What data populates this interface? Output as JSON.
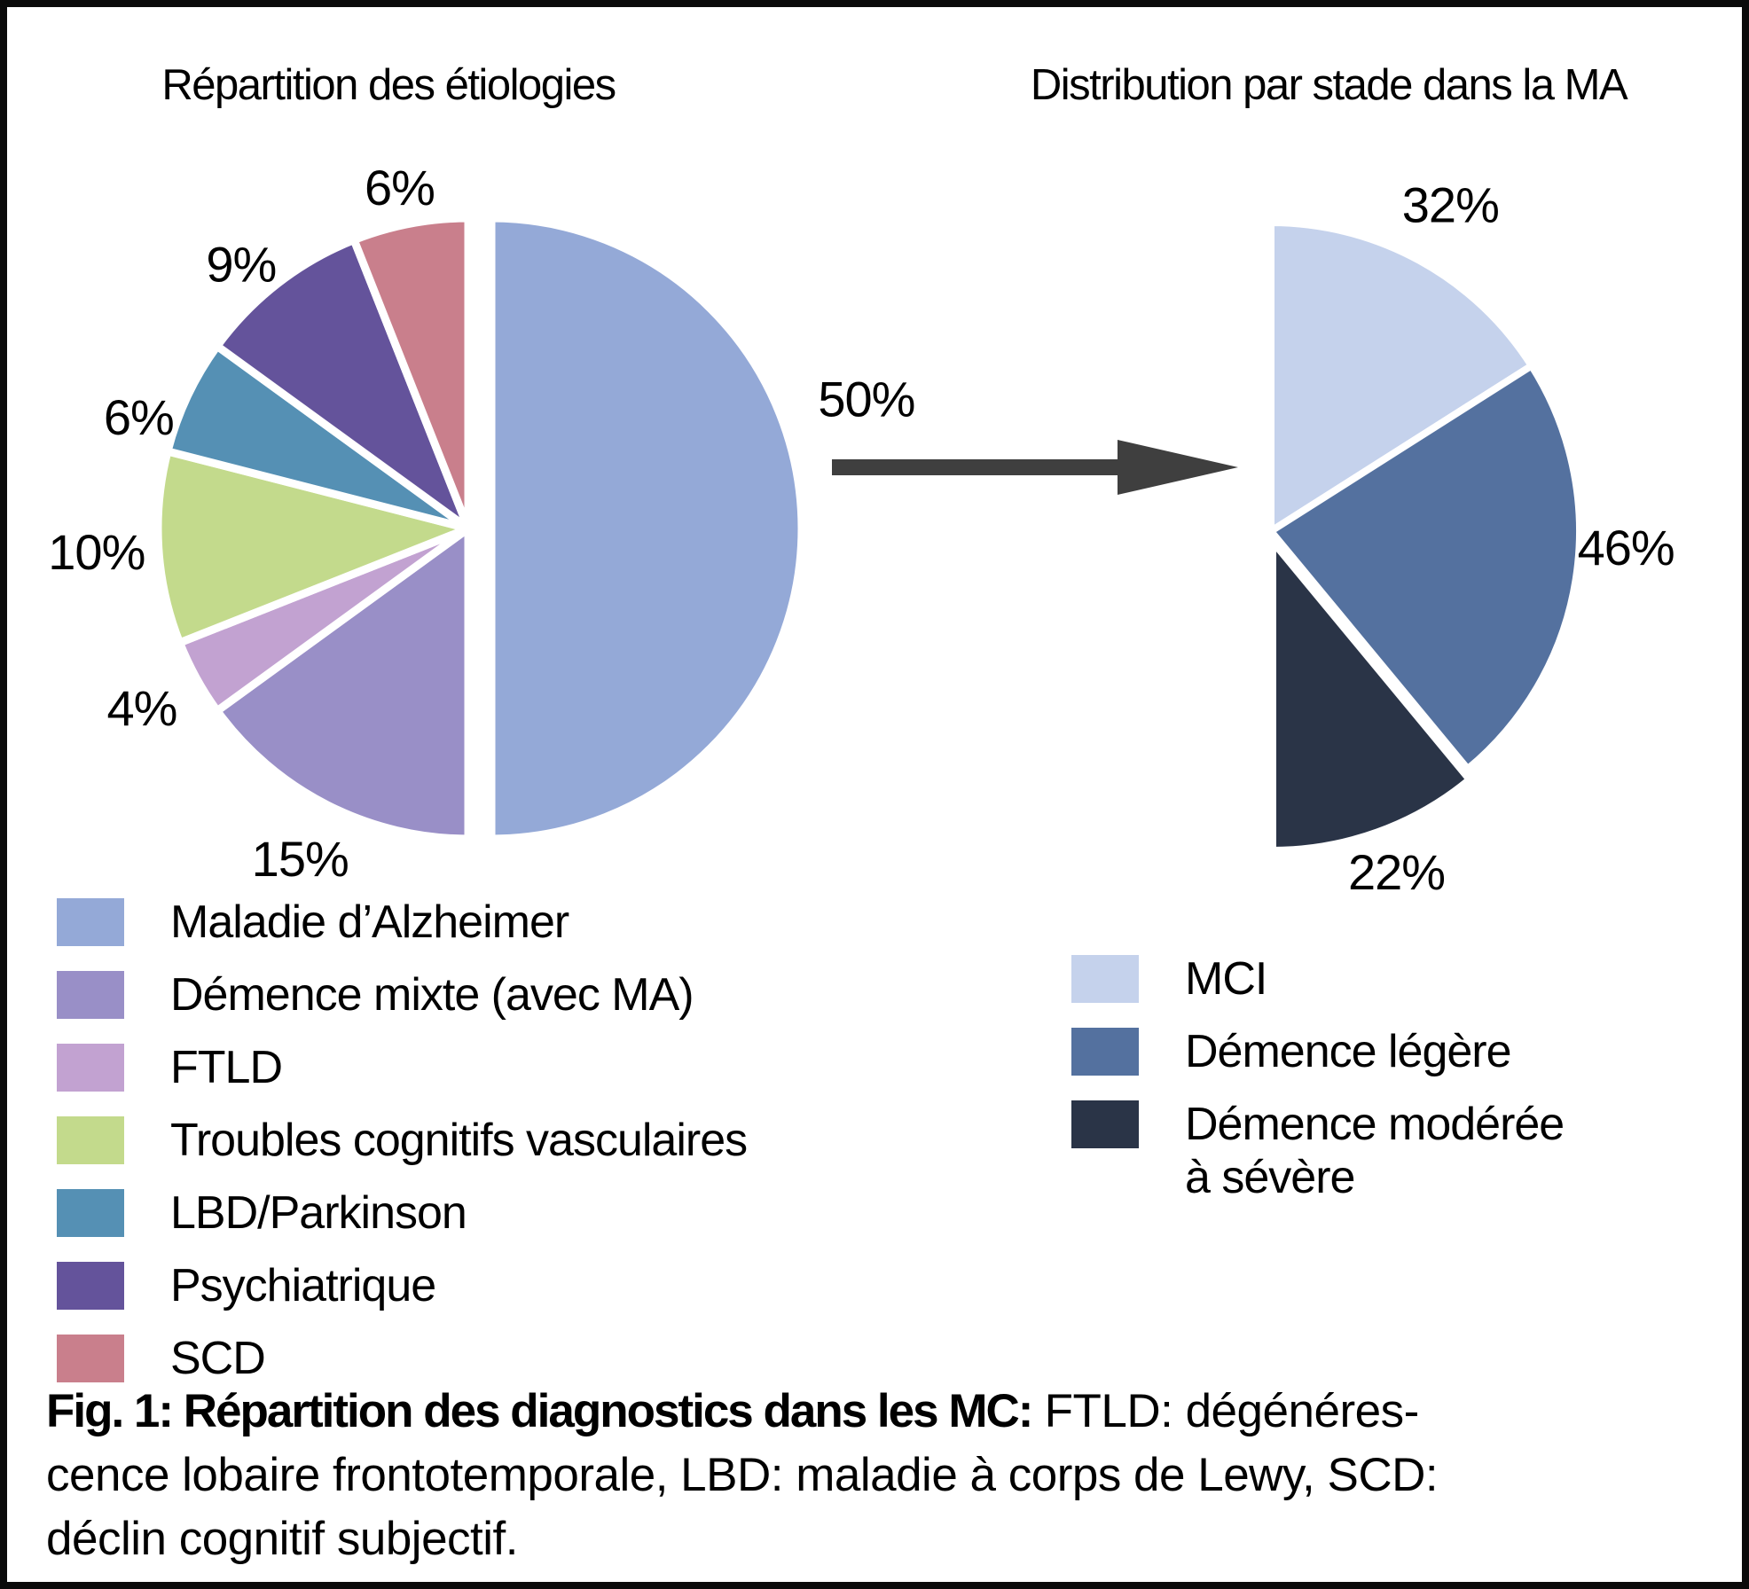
{
  "chart_data": [
    {
      "type": "pie",
      "title": "Répartition des étiologies",
      "shape": "full-circle",
      "unit": "percent",
      "legend_position": "bottom-left",
      "slices": [
        {
          "label": "Maladie d’Alzheimer",
          "value": 50,
          "pct_label": "50%",
          "color": "#94a9d7"
        },
        {
          "label": "Démence mixte (avec MA)",
          "value": 15,
          "pct_label": "15%",
          "color": "#998fc7"
        },
        {
          "label": "FTLD",
          "value": 4,
          "pct_label": "4%",
          "color": "#c2a2d1"
        },
        {
          "label": "Troubles cognitifs vasculaires",
          "value": 10,
          "pct_label": "10%",
          "color": "#c3da8c"
        },
        {
          "label": "LBD/Parkinson",
          "value": 6,
          "pct_label": "6%",
          "color": "#5590b4"
        },
        {
          "label": "Psychiatrique",
          "value": 9,
          "pct_label": "9%",
          "color": "#64539b"
        },
        {
          "label": "SCD",
          "value": 6,
          "pct_label": "6%",
          "color": "#c97f8c"
        }
      ]
    },
    {
      "type": "pie",
      "title": "Distribution par stade dans la MA",
      "shape": "half-circle-right",
      "unit": "percent",
      "legend_position": "bottom-right",
      "slices": [
        {
          "label": "MCI",
          "value": 32,
          "pct_label": "32%",
          "color": "#c5d2ec"
        },
        {
          "label": "Démence légère",
          "value": 46,
          "pct_label": "46%",
          "color": "#54719f"
        },
        {
          "label": "Démence modérée à sévère",
          "value": 22,
          "pct_label": "22%",
          "color": "#2a3447",
          "label_lines": [
            "Démence modérée",
            "à sévère"
          ]
        }
      ]
    }
  ],
  "arrow": {
    "direction": "right",
    "color": "#3f3f3f"
  },
  "caption": {
    "line1_bold": "Fig. 1: Répartition des diagnostics dans les MC:",
    "line1_rest": " FTLD: dégénéres-",
    "line2": "cence lobaire frontotemporale, LBD: maladie à corps de Lewy, SCD:",
    "line3": "déclin cognitif subjectif."
  }
}
